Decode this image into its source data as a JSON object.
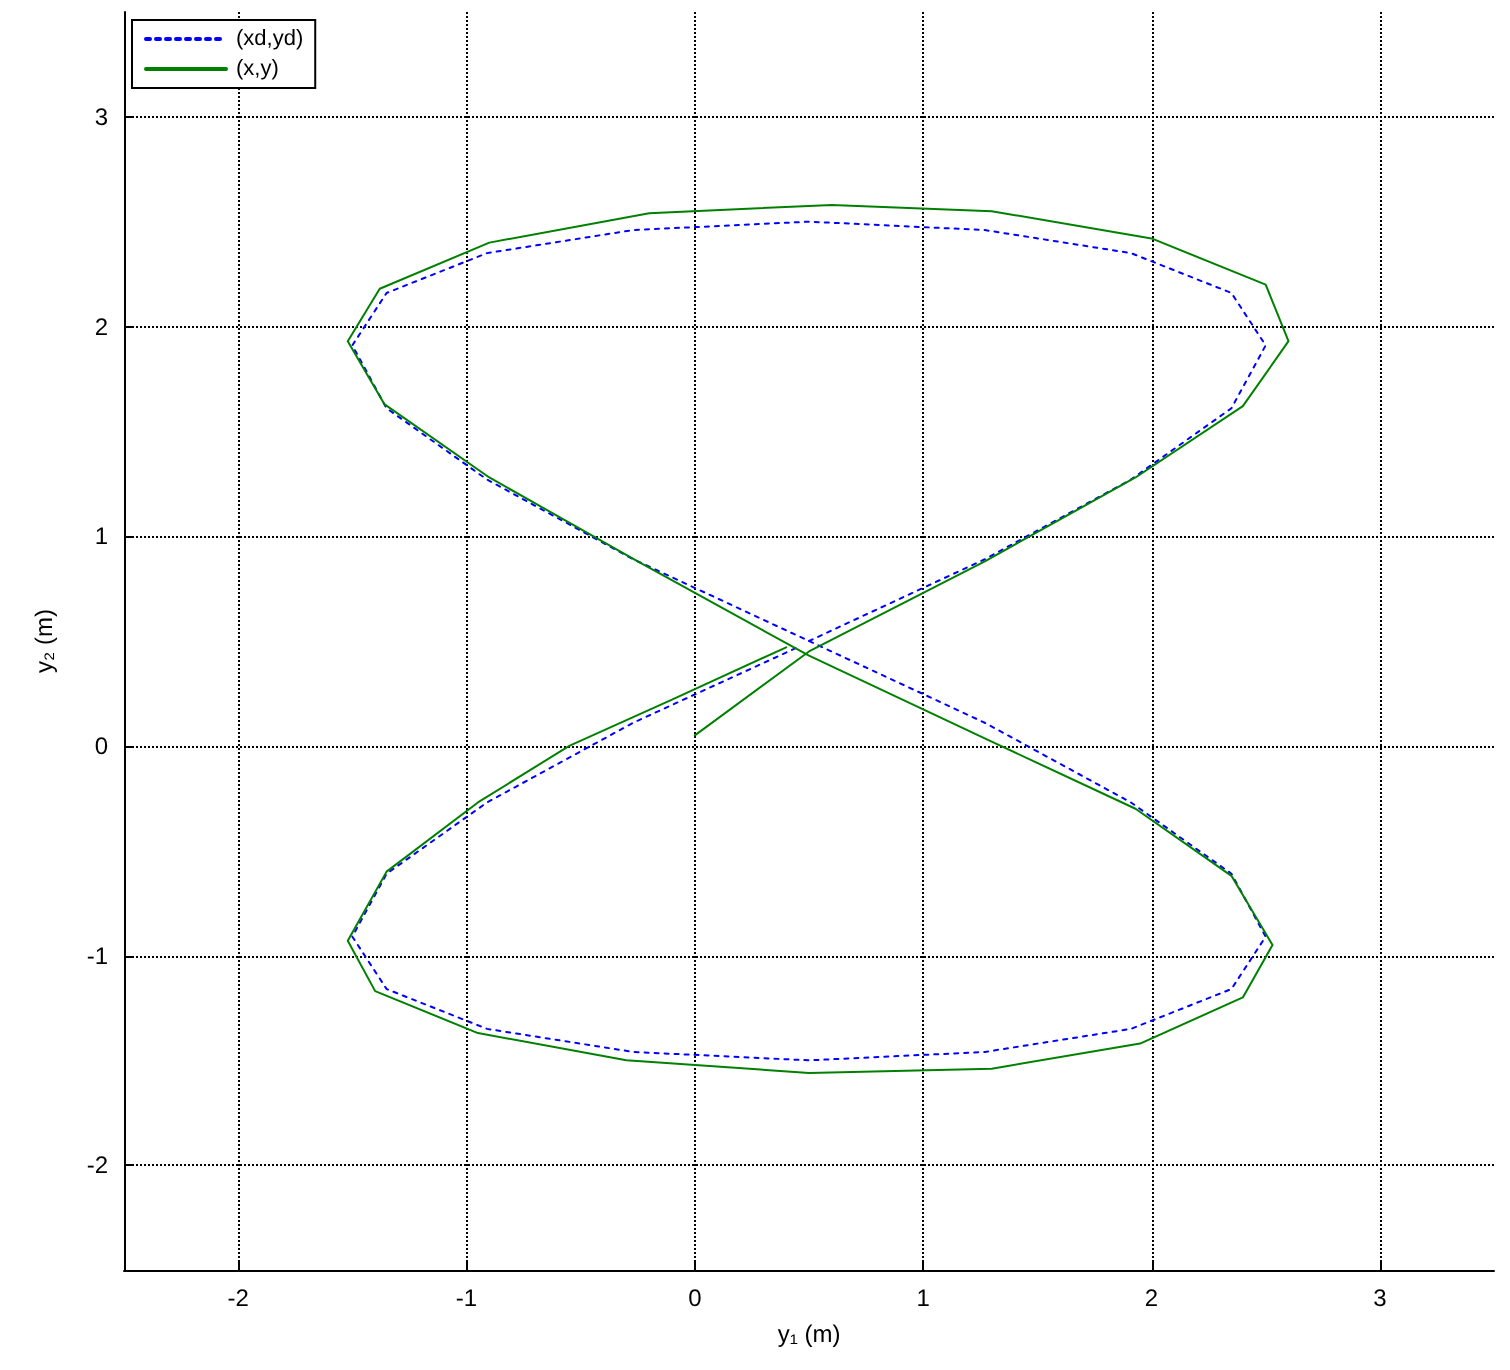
{
  "chart_data": {
    "type": "line",
    "xlabel": "y₁ (m)",
    "ylabel": "y₂ (m)",
    "xlim": [
      -2.5,
      3.5
    ],
    "xticks": [
      -2,
      -1,
      0,
      1,
      2,
      3
    ],
    "ylim": [
      -2.5,
      3.5
    ],
    "yticks": [
      -2,
      -1,
      0,
      1,
      2,
      3
    ],
    "grid": true,
    "legend": "top left",
    "marker": "none",
    "series": [
      {
        "name": "(xd,yd)",
        "color": "#0000ff",
        "line_style": "dotted",
        "x": [
          0.5,
          1.27,
          1.91,
          2.35,
          2.5,
          2.35,
          1.91,
          1.27,
          0.5,
          -0.27,
          -0.91,
          -1.35,
          -1.5,
          -1.35,
          -0.91,
          -0.27,
          0.5,
          1.27,
          1.91,
          2.35,
          2.5,
          2.35,
          1.91,
          1.27,
          0.5,
          -0.27,
          -0.91,
          -1.35,
          -1.5,
          -1.35,
          -0.91,
          -0.27,
          0.45
        ],
        "values": [
          0.5,
          0.89,
          1.27,
          1.61,
          1.91,
          2.16,
          2.35,
          2.46,
          2.5,
          2.46,
          2.35,
          2.16,
          1.91,
          1.61,
          1.27,
          0.89,
          0.5,
          0.11,
          -0.27,
          -0.61,
          -0.91,
          -1.16,
          -1.35,
          -1.46,
          -1.5,
          -1.46,
          -1.35,
          -1.16,
          -0.91,
          -0.61,
          -0.27,
          0.11,
          0.47
        ]
      },
      {
        "name": "(x,y)",
        "color": "#008000",
        "line_style": "solid",
        "x": [
          0,
          0.5,
          1.27,
          1.93,
          2.4,
          2.6,
          2.5,
          2.0,
          1.3,
          0.6,
          -0.2,
          -0.9,
          -1.38,
          -1.52,
          -1.36,
          -0.9,
          -0.25,
          0.5,
          1.3,
          1.93,
          2.35,
          2.53,
          2.4,
          1.95,
          1.3,
          0.5,
          -0.3,
          -0.95,
          -1.4,
          -1.52,
          -1.35,
          -0.95,
          -0.55,
          -0.1,
          0.4
        ],
        "values": [
          0.05,
          0.45,
          0.88,
          1.28,
          1.62,
          1.93,
          2.2,
          2.42,
          2.55,
          2.58,
          2.54,
          2.4,
          2.18,
          1.93,
          1.63,
          1.28,
          0.88,
          0.43,
          0.02,
          -0.3,
          -0.62,
          -0.95,
          -1.2,
          -1.42,
          -1.54,
          -1.56,
          -1.5,
          -1.37,
          -1.17,
          -0.93,
          -0.6,
          -0.27,
          0,
          0.22,
          0.47
        ]
      }
    ]
  }
}
